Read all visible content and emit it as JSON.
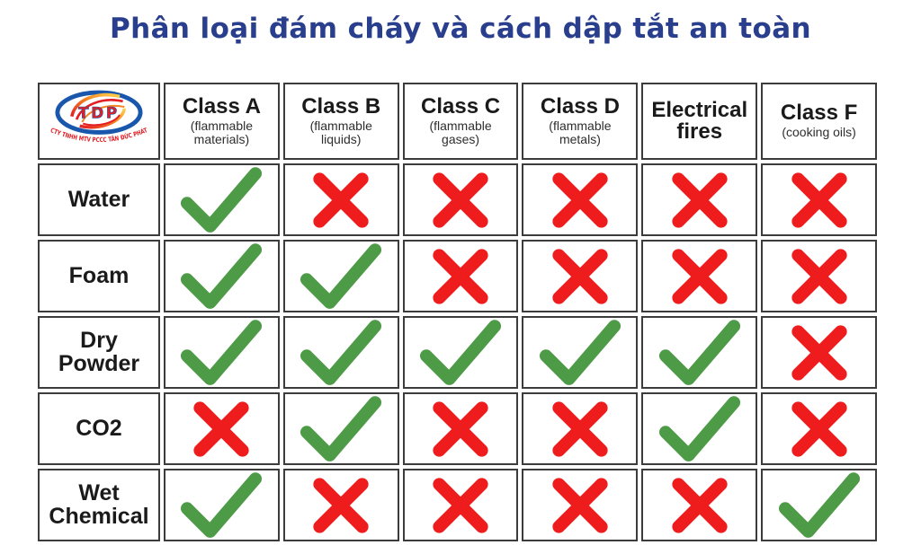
{
  "title": "Phân loại đám cháy và cách dập tắt an toàn",
  "logo": {
    "acronym": "TDP",
    "company": "CTY TNHH MTV PCCC TÂN ĐỨC PHÁT"
  },
  "colors": {
    "title": "#293e8c",
    "check": "#4e9b47",
    "cross": "#ee1c1c",
    "border": "#3c3c3c",
    "logo_blue": "#1857ac",
    "logo_red": "#e31e24",
    "logo_orange": "#f58220"
  },
  "ui": {
    "columns": [
      {
        "label": "Class A",
        "sub": "(flammable materials)"
      },
      {
        "label": "Class B",
        "sub": "(flammable liquids)"
      },
      {
        "label": "Class C",
        "sub": "(flammable gases)"
      },
      {
        "label": "Class D",
        "sub": "(flammable metals)"
      },
      {
        "label": "Electrical fires",
        "sub": ""
      },
      {
        "label": "Class F",
        "sub": "(cooking oils)"
      }
    ],
    "rows": [
      {
        "label": "Water",
        "marks": [
          "check",
          "cross",
          "cross",
          "cross",
          "cross",
          "cross"
        ]
      },
      {
        "label": "Foam",
        "marks": [
          "check",
          "check",
          "cross",
          "cross",
          "cross",
          "cross"
        ]
      },
      {
        "label": "Dry Powder",
        "marks": [
          "check",
          "check",
          "check",
          "check",
          "check",
          "cross"
        ]
      },
      {
        "label": "CO2",
        "marks": [
          "cross",
          "check",
          "cross",
          "cross",
          "check",
          "cross"
        ]
      },
      {
        "label": "Wet Chemical",
        "marks": [
          "check",
          "cross",
          "cross",
          "cross",
          "cross",
          "check"
        ]
      }
    ]
  },
  "chart_data": {
    "type": "table",
    "title": "Phân loại đám cháy và cách dập tắt an toàn",
    "columns": [
      "",
      "Class A (flammable materials)",
      "Class B (flammable liquids)",
      "Class C (flammable gases)",
      "Class D (flammable metals)",
      "Electrical fires",
      "Class F (cooking oils)"
    ],
    "rows": [
      [
        "Water",
        "check",
        "cross",
        "cross",
        "cross",
        "cross",
        "cross"
      ],
      [
        "Foam",
        "check",
        "check",
        "cross",
        "cross",
        "cross",
        "cross"
      ],
      [
        "Dry Powder",
        "check",
        "check",
        "check",
        "check",
        "check",
        "cross"
      ],
      [
        "CO2",
        "cross",
        "check",
        "cross",
        "cross",
        "check",
        "cross"
      ],
      [
        "Wet Chemical",
        "check",
        "cross",
        "cross",
        "cross",
        "cross",
        "check"
      ]
    ],
    "mark_meaning": {
      "check": "green check mark",
      "cross": "red X mark"
    }
  }
}
